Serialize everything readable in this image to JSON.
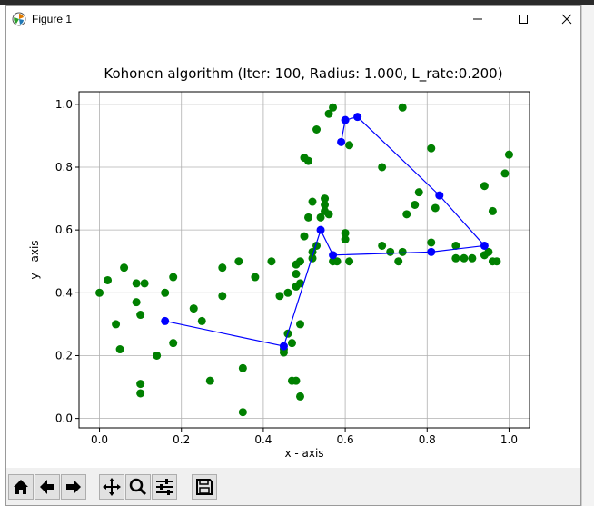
{
  "window": {
    "title": "Figure 1"
  },
  "toolbar": {
    "buttons": [
      {
        "name": "home-button",
        "icon": "home-icon"
      },
      {
        "name": "back-button",
        "icon": "arrow-left-icon"
      },
      {
        "name": "forward-button",
        "icon": "arrow-right-icon"
      },
      {
        "name": "pan-button",
        "icon": "move-icon"
      },
      {
        "name": "zoom-button",
        "icon": "magnifier-icon"
      },
      {
        "name": "configure-subplots-button",
        "icon": "sliders-icon"
      },
      {
        "name": "save-button",
        "icon": "floppy-disk-icon"
      }
    ]
  },
  "chart_data": {
    "type": "scatter",
    "title": "Kohonen algorithm (Iter: 100, Radius: 1.000, L_rate:0.200)",
    "xlabel": "x - axis",
    "ylabel": "y - axis",
    "xlim": [
      -0.05,
      1.05
    ],
    "ylim": [
      -0.03,
      1.04
    ],
    "xticks": [
      0.0,
      0.2,
      0.4,
      0.6,
      0.8,
      1.0
    ],
    "yticks": [
      0.0,
      0.2,
      0.4,
      0.6,
      0.8,
      1.0
    ],
    "xticklabels": [
      "0.0",
      "0.2",
      "0.4",
      "0.6",
      "0.8",
      "1.0"
    ],
    "yticklabels": [
      "0.0",
      "0.2",
      "0.4",
      "0.6",
      "0.8",
      "1.0"
    ],
    "grid": true,
    "colors": {
      "samples": "#008000",
      "neurons": "#0000ff"
    },
    "samples": {
      "x": [
        0.0,
        0.02,
        0.04,
        0.05,
        0.06,
        0.09,
        0.09,
        0.1,
        0.1,
        0.1,
        0.11,
        0.14,
        0.16,
        0.18,
        0.18,
        0.23,
        0.25,
        0.27,
        0.3,
        0.3,
        0.34,
        0.35,
        0.35,
        0.38,
        0.42,
        0.44,
        0.45,
        0.45,
        0.46,
        0.46,
        0.47,
        0.47,
        0.48,
        0.48,
        0.48,
        0.48,
        0.49,
        0.49,
        0.49,
        0.49,
        0.5,
        0.5,
        0.51,
        0.51,
        0.52,
        0.52,
        0.52,
        0.53,
        0.53,
        0.54,
        0.55,
        0.55,
        0.55,
        0.56,
        0.56,
        0.57,
        0.58,
        0.6,
        0.6,
        0.61,
        0.61,
        0.69,
        0.69,
        0.71,
        0.73,
        0.74,
        0.74,
        0.75,
        0.77,
        0.78,
        0.81,
        0.81,
        0.82,
        0.87,
        0.87,
        0.89,
        0.91,
        0.94,
        0.94,
        0.95,
        0.96,
        0.96,
        0.97,
        0.99,
        1.0,
        0.57
      ],
      "y": [
        0.4,
        0.44,
        0.3,
        0.22,
        0.48,
        0.43,
        0.37,
        0.33,
        0.11,
        0.08,
        0.43,
        0.2,
        0.4,
        0.45,
        0.24,
        0.35,
        0.31,
        0.12,
        0.48,
        0.39,
        0.5,
        0.02,
        0.16,
        0.45,
        0.5,
        0.39,
        0.22,
        0.21,
        0.27,
        0.4,
        0.12,
        0.24,
        0.42,
        0.46,
        0.49,
        0.12,
        0.5,
        0.3,
        0.07,
        0.43,
        0.58,
        0.83,
        0.64,
        0.82,
        0.51,
        0.69,
        0.53,
        0.55,
        0.92,
        0.64,
        0.68,
        0.66,
        0.7,
        0.65,
        0.97,
        0.99,
        0.5,
        0.59,
        0.57,
        0.87,
        0.5,
        0.8,
        0.55,
        0.53,
        0.5,
        0.99,
        0.53,
        0.65,
        0.68,
        0.72,
        0.86,
        0.56,
        0.67,
        0.55,
        0.51,
        0.51,
        0.51,
        0.74,
        0.52,
        0.53,
        0.66,
        0.5,
        0.5,
        0.78,
        0.84,
        0.5
      ]
    },
    "neurons": {
      "x": [
        0.16,
        0.45,
        0.54,
        0.57,
        0.81,
        0.94,
        0.83,
        0.63,
        0.6,
        0.59
      ],
      "y": [
        0.31,
        0.23,
        0.6,
        0.52,
        0.53,
        0.55,
        0.71,
        0.96,
        0.95,
        0.88
      ]
    }
  }
}
